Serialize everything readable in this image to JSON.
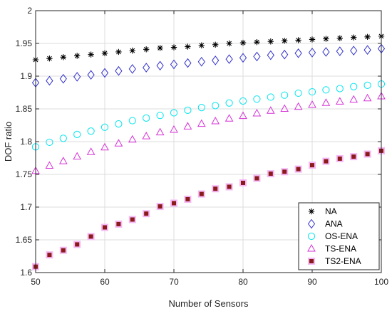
{
  "chart_data": {
    "type": "scatter",
    "xlabel": "Number of Sensors",
    "ylabel": "DOF ratio",
    "xlim": [
      50,
      100
    ],
    "ylim": [
      1.6,
      2.0
    ],
    "xticks": [
      "50",
      "60",
      "70",
      "80",
      "90",
      "100"
    ],
    "yticks": [
      "1.6",
      "1.65",
      "1.7",
      "1.75",
      "1.8",
      "1.85",
      "1.9",
      "1.95",
      "2"
    ],
    "grid": true,
    "legend_position": "bottom-right",
    "x": [
      50,
      52,
      54,
      56,
      58,
      60,
      62,
      64,
      66,
      68,
      70,
      72,
      74,
      76,
      78,
      80,
      82,
      84,
      86,
      88,
      90,
      92,
      94,
      96,
      98,
      100
    ],
    "series": [
      {
        "name": "NA",
        "marker": "asterisk",
        "color": "#000000",
        "values": [
          1.925,
          1.927,
          1.929,
          1.931,
          1.933,
          1.935,
          1.937,
          1.939,
          1.941,
          1.943,
          1.944,
          1.945,
          1.947,
          1.948,
          1.95,
          1.951,
          1.952,
          1.953,
          1.954,
          1.955,
          1.956,
          1.957,
          1.958,
          1.959,
          1.96,
          1.961
        ]
      },
      {
        "name": "ANA",
        "marker": "diamond",
        "color": "#3333cc",
        "values": [
          1.89,
          1.893,
          1.896,
          1.899,
          1.902,
          1.905,
          1.908,
          1.911,
          1.913,
          1.916,
          1.918,
          1.92,
          1.922,
          1.924,
          1.926,
          1.928,
          1.93,
          1.932,
          1.933,
          1.935,
          1.936,
          1.937,
          1.938,
          1.939,
          1.94,
          1.942
        ]
      },
      {
        "name": "OS-ENA",
        "marker": "circle",
        "color": "#00e5ee",
        "values": [
          1.792,
          1.799,
          1.805,
          1.811,
          1.816,
          1.822,
          1.827,
          1.832,
          1.836,
          1.84,
          1.844,
          1.848,
          1.852,
          1.855,
          1.859,
          1.862,
          1.865,
          1.868,
          1.871,
          1.874,
          1.876,
          1.879,
          1.881,
          1.884,
          1.886,
          1.888
        ]
      },
      {
        "name": "TS-ENA",
        "marker": "triangle",
        "color": "#d633d6",
        "values": [
          1.755,
          1.763,
          1.77,
          1.777,
          1.784,
          1.791,
          1.797,
          1.803,
          1.808,
          1.814,
          1.818,
          1.823,
          1.827,
          1.831,
          1.835,
          1.839,
          1.843,
          1.847,
          1.85,
          1.853,
          1.856,
          1.859,
          1.861,
          1.864,
          1.866,
          1.869
        ]
      },
      {
        "name": "TS2-ENA",
        "marker": "square",
        "color": "#8b1a1a",
        "halo": "#f5b8f5",
        "values": [
          1.609,
          1.627,
          1.634,
          1.643,
          1.655,
          1.669,
          1.674,
          1.681,
          1.69,
          1.701,
          1.706,
          1.712,
          1.72,
          1.728,
          1.731,
          1.737,
          1.744,
          1.751,
          1.754,
          1.758,
          1.764,
          1.77,
          1.774,
          1.777,
          1.781,
          1.786
        ]
      }
    ]
  }
}
